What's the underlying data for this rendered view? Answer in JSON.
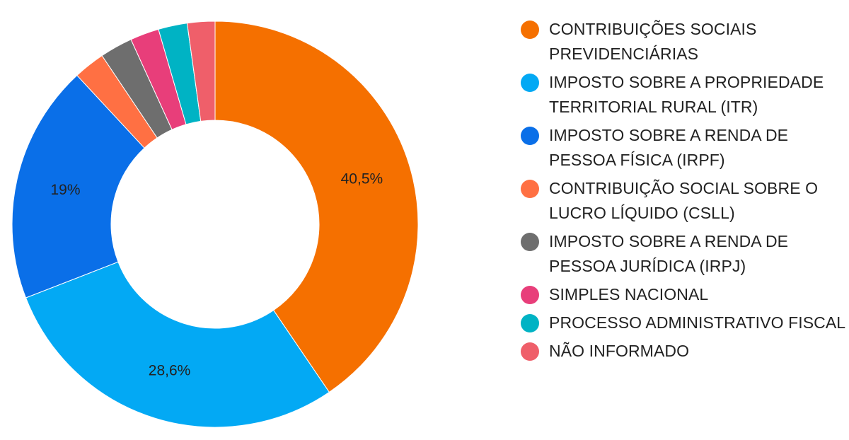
{
  "chart_data": {
    "type": "pie",
    "donut": true,
    "legend_position": "right",
    "slices": [
      {
        "name": "CONTRIBUIÇÕES SOCIAIS PREVIDENCIÁRIAS",
        "value": 40.5,
        "label": "40,5%",
        "color": "#f57000"
      },
      {
        "name": "IMPOSTO SOBRE A PROPRIEDADE TERRITORIAL RURAL (ITR)",
        "value": 28.6,
        "label": "28,6%",
        "color": "#03a9f4"
      },
      {
        "name": "IMPOSTO SOBRE A RENDA DE PESSOA FÍSICA (IRPF)",
        "value": 19,
        "label": "19%",
        "color": "#0a6fe8"
      },
      {
        "name": "CONTRIBUIÇÃO SOCIAL SOBRE O LUCRO LÍQUIDO (CSLL)",
        "value": 2.5,
        "label": "",
        "color": "#ff7043"
      },
      {
        "name": "IMPOSTO SOBRE A RENDA DE PESSOA JURÍDICA (IRPJ)",
        "value": 2.6,
        "label": "",
        "color": "#6e6e6e"
      },
      {
        "name": "SIMPLES NACIONAL",
        "value": 2.3,
        "label": "",
        "color": "#e83e7a"
      },
      {
        "name": "PROCESSO ADMINISTRATIVO FISCAL",
        "value": 2.3,
        "label": "",
        "color": "#00b3c4"
      },
      {
        "name": "NÃO INFORMADO",
        "value": 2.2,
        "label": "",
        "color": "#ef5f6a"
      }
    ]
  }
}
